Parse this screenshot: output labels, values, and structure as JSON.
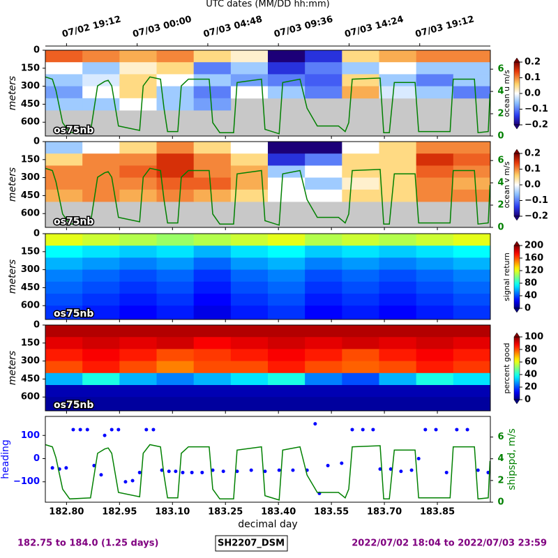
{
  "chart_data": [
    {
      "type": "heatmap",
      "label": "os75nb",
      "ylabel": "meters",
      "colorbar_label": "ocean u m/s",
      "colormap": "diverging",
      "x2label": "UTC dates (MM/DD hh:mm)",
      "x2ticks": [
        {
          "value": 182.8,
          "label": "07/02 19:12"
        },
        {
          "value": 183.0,
          "label": "07/03 00:00"
        },
        {
          "value": 183.2,
          "label": "07/03 04:48"
        },
        {
          "value": 183.4,
          "label": "07/03 09:36"
        },
        {
          "value": 183.6,
          "label": "07/03 14:24"
        },
        {
          "value": 183.8,
          "label": "07/03 19:12"
        }
      ],
      "xlim": [
        182.74,
        184.0
      ],
      "ylim": [
        0,
        715
      ],
      "invert_y": true,
      "yticks": [
        0,
        150,
        300,
        450,
        600
      ],
      "y2lim": [
        0,
        7.7
      ],
      "y2ticks": [
        0,
        2,
        4,
        6
      ],
      "y2color": "#008000",
      "clim": [
        -0.2,
        0.2
      ],
      "cticks": [
        0.2,
        0.1,
        {
          "value": 0,
          "label": "0.0"
        },
        {
          "value": -0.1,
          "label": "−0.1"
        },
        {
          "value": -0.2,
          "label": "−0.2"
        }
      ],
      "x_edges": [
        182.74,
        182.845,
        182.95,
        183.055,
        183.16,
        183.265,
        183.37,
        183.475,
        183.58,
        183.685,
        183.79,
        183.895,
        184.0
      ],
      "y_edges": [
        0,
        100,
        200,
        300,
        400,
        500,
        600,
        715
      ],
      "values": [
        [
          0.12,
          0.1,
          0.08,
          0.1,
          0.05,
          0.02,
          -0.2,
          -0.15,
          0.05,
          0.08,
          0.1,
          0.1
        ],
        [
          0.0,
          -0.05,
          0.02,
          0.05,
          -0.1,
          -0.05,
          -0.15,
          -0.1,
          -0.05,
          0.0,
          -0.05,
          -0.05
        ],
        [
          -0.05,
          -0.02,
          0.05,
          0.0,
          -0.05,
          -0.08,
          -0.1,
          -0.12,
          0.05,
          -0.05,
          -0.1,
          -0.05
        ],
        [
          -0.08,
          0.0,
          0.05,
          -0.05,
          -0.1,
          0.0,
          -0.05,
          -0.1,
          0.08,
          -0.02,
          -0.05,
          -0.1
        ],
        [
          -0.05,
          -0.05,
          0.0,
          -0.05,
          -0.08,
          null,
          null,
          null,
          null,
          null,
          null,
          null
        ],
        [
          null,
          null,
          null,
          null,
          null,
          null,
          null,
          null,
          null,
          null,
          null,
          null
        ],
        [
          null,
          null,
          null,
          null,
          null,
          null,
          null,
          null,
          null,
          null,
          null,
          null
        ]
      ]
    },
    {
      "type": "heatmap",
      "label": "os75nb",
      "ylabel": "meters",
      "colorbar_label": "ocean v m/s",
      "colormap": "diverging",
      "xlim": [
        182.74,
        184.0
      ],
      "ylim": [
        0,
        715
      ],
      "invert_y": true,
      "yticks": [
        0,
        150,
        300,
        450,
        600
      ],
      "y2lim": [
        0,
        7.7
      ],
      "y2ticks": [
        0,
        2,
        4,
        6
      ],
      "y2color": "#008000",
      "clim": [
        -0.2,
        0.2
      ],
      "cticks": [
        0.2,
        0.1,
        {
          "value": 0,
          "label": "0.0"
        },
        {
          "value": -0.1,
          "label": "−0.1"
        },
        {
          "value": -0.2,
          "label": "−0.2"
        }
      ],
      "x_edges": [
        182.74,
        182.845,
        182.95,
        183.055,
        183.16,
        183.265,
        183.37,
        183.475,
        183.58,
        183.685,
        183.79,
        183.895,
        184.0
      ],
      "y_edges": [
        0,
        100,
        200,
        300,
        400,
        500,
        600,
        715
      ],
      "values": [
        [
          -0.05,
          0.0,
          0.05,
          0.1,
          0.05,
          0.0,
          -0.2,
          -0.2,
          0.0,
          0.05,
          0.1,
          0.1
        ],
        [
          0.05,
          0.1,
          0.1,
          0.15,
          0.1,
          0.05,
          -0.15,
          -0.1,
          0.05,
          0.05,
          0.15,
          0.12
        ],
        [
          0.1,
          0.1,
          0.12,
          0.15,
          0.1,
          0.08,
          -0.05,
          0.0,
          0.05,
          0.05,
          0.12,
          0.1
        ],
        [
          0.1,
          0.1,
          0.1,
          0.12,
          0.12,
          0.08,
          0.0,
          -0.05,
          0.02,
          0.05,
          0.1,
          0.08
        ],
        [
          0.08,
          0.1,
          0.08,
          0.1,
          0.08,
          0.05,
          0.0,
          0.0,
          0.05,
          0.05,
          0.1,
          0.1
        ],
        [
          null,
          null,
          null,
          null,
          null,
          null,
          null,
          null,
          null,
          null,
          null,
          null
        ],
        [
          null,
          null,
          null,
          null,
          null,
          null,
          null,
          null,
          null,
          null,
          null,
          null
        ]
      ]
    },
    {
      "type": "heatmap",
      "label": "os75nb",
      "ylabel": "meters",
      "colorbar_label": "signal return",
      "colormap": "jet",
      "xlim": [
        182.74,
        184.0
      ],
      "ylim": [
        0,
        715
      ],
      "invert_y": true,
      "yticks": [
        0,
        150,
        300,
        450,
        600
      ],
      "clim": [
        0,
        200
      ],
      "cticks": [
        200,
        160,
        120,
        80,
        40,
        0
      ],
      "x_edges": [
        182.74,
        182.845,
        182.95,
        183.055,
        183.16,
        183.265,
        183.37,
        183.475,
        183.58,
        183.685,
        183.79,
        183.895,
        184.0
      ],
      "y_edges": [
        0,
        100,
        200,
        300,
        400,
        500,
        600,
        715
      ],
      "values": [
        [
          120,
          115,
          110,
          105,
          110,
          115,
          120,
          110,
          115,
          110,
          115,
          120
        ],
        [
          75,
          70,
          65,
          70,
          60,
          70,
          75,
          65,
          70,
          65,
          70,
          75
        ],
        [
          60,
          55,
          50,
          55,
          45,
          55,
          60,
          50,
          55,
          50,
          55,
          60
        ],
        [
          50,
          45,
          40,
          45,
          35,
          45,
          50,
          40,
          45,
          40,
          45,
          50
        ],
        [
          45,
          40,
          35,
          40,
          30,
          40,
          45,
          35,
          40,
          35,
          40,
          45
        ],
        [
          40,
          35,
          30,
          35,
          25,
          35,
          40,
          30,
          35,
          30,
          35,
          40
        ],
        [
          35,
          30,
          25,
          30,
          20,
          30,
          35,
          25,
          30,
          25,
          30,
          35
        ]
      ]
    },
    {
      "type": "heatmap",
      "label": "os75nb",
      "ylabel": "meters",
      "colorbar_label": "percent good",
      "colormap": "jet",
      "xlim": [
        182.74,
        184.0
      ],
      "ylim": [
        0,
        715
      ],
      "invert_y": true,
      "yticks": [
        0,
        150,
        300,
        450,
        600
      ],
      "clim": [
        0,
        100
      ],
      "cticks": [
        100,
        80,
        60,
        40,
        20,
        0
      ],
      "x_edges": [
        182.74,
        182.845,
        182.95,
        183.055,
        183.16,
        183.265,
        183.37,
        183.475,
        183.58,
        183.685,
        183.79,
        183.895,
        184.0
      ],
      "y_edges": [
        0,
        100,
        200,
        300,
        400,
        500,
        600,
        715
      ],
      "values": [
        [
          95,
          95,
          95,
          95,
          95,
          95,
          95,
          95,
          95,
          95,
          95,
          95
        ],
        [
          90,
          92,
          90,
          92,
          88,
          90,
          92,
          90,
          92,
          90,
          92,
          90
        ],
        [
          85,
          88,
          85,
          80,
          82,
          85,
          88,
          85,
          80,
          85,
          88,
          85
        ],
        [
          80,
          85,
          80,
          75,
          80,
          80,
          85,
          80,
          78,
          80,
          85,
          82
        ],
        [
          30,
          40,
          30,
          25,
          30,
          35,
          40,
          25,
          20,
          30,
          40,
          35
        ],
        [
          5,
          5,
          5,
          5,
          5,
          5,
          5,
          5,
          5,
          5,
          5,
          5
        ],
        [
          3,
          3,
          3,
          3,
          3,
          3,
          3,
          3,
          3,
          3,
          3,
          3
        ]
      ]
    },
    {
      "type": "scatter",
      "xlabel": "decimal day",
      "xlim": [
        182.74,
        184.0
      ],
      "xticks": [
        {
          "value": 182.8,
          "label": "182.80"
        },
        182.95,
        {
          "value": 183.1,
          "label": "183.10"
        },
        183.25,
        {
          "value": 183.4,
          "label": "183.40"
        },
        183.55,
        {
          "value": 183.7,
          "label": "183.70"
        },
        183.85
      ],
      "ylim": [
        -188,
        182
      ],
      "yticks": [
        100,
        0,
        {
          "value": -100,
          "label": "−100"
        }
      ],
      "y2lim": [
        0,
        7.9
      ],
      "y2ticks": [
        0,
        2,
        4,
        6
      ],
      "series": [
        {
          "name": "heading",
          "color": "#0000ff",
          "x": [
            182.76,
            182.78,
            182.799,
            182.819,
            182.839,
            182.859,
            182.878,
            182.898,
            182.908,
            182.928,
            182.947,
            182.967,
            182.987,
            183.007,
            183.026,
            183.046,
            183.07,
            183.09,
            183.109,
            183.129,
            183.155,
            183.184,
            183.214,
            183.244,
            183.283,
            183.323,
            183.362,
            183.402,
            183.441,
            183.481,
            183.504,
            183.516,
            183.54,
            183.579,
            183.609,
            183.639,
            183.668,
            183.688,
            183.718,
            183.747,
            183.777,
            183.797,
            183.816,
            183.846,
            183.876,
            183.905,
            183.935,
            183.965,
            183.994
          ],
          "values": [
            -40,
            -45,
            -40,
            125,
            125,
            125,
            -30,
            -70,
            100,
            125,
            125,
            -100,
            -95,
            -60,
            125,
            125,
            -50,
            -55,
            -55,
            -60,
            -60,
            -60,
            -50,
            -55,
            -55,
            -50,
            -55,
            -50,
            -50,
            -50,
            150,
            -150,
            -30,
            -20,
            125,
            125,
            125,
            -45,
            -45,
            -55,
            -50,
            0,
            125,
            125,
            -60,
            125,
            125,
            -50,
            -60
          ]
        },
        {
          "name": "shipspd, m/s",
          "color": "#008000",
          "axis": "y2",
          "x": [
            182.74,
            182.76,
            182.77,
            182.789,
            182.809,
            182.868,
            182.888,
            182.908,
            182.918,
            182.928,
            182.947,
            183.007,
            183.017,
            183.036,
            183.066,
            183.076,
            183.086,
            183.115,
            183.125,
            183.135,
            183.145,
            183.204,
            183.214,
            183.234,
            183.273,
            183.283,
            183.352,
            183.362,
            183.402,
            183.412,
            183.461,
            183.481,
            183.51,
            183.57,
            183.589,
            183.599,
            183.609,
            183.688,
            183.698,
            183.714,
            183.728,
            183.787,
            183.797,
            183.886,
            183.895,
            183.955,
            183.965,
            183.994,
            183.999
          ],
          "values": [
            5.3,
            5.1,
            4.1,
            1.2,
            0.3,
            0.4,
            4.5,
            4.9,
            5.0,
            4.5,
            0.9,
            0.5,
            4.5,
            5.3,
            5.1,
            2.5,
            0.4,
            0.4,
            4.5,
            4.8,
            5.1,
            5.1,
            1.2,
            0.3,
            0.3,
            4.8,
            5.1,
            0.6,
            0.2,
            4.8,
            5.1,
            2.5,
            0.9,
            0.9,
            0.4,
            1.2,
            5.1,
            5.2,
            0.3,
            0.3,
            4.8,
            4.8,
            0.4,
            0.4,
            5.1,
            5.1,
            0.3,
            0.4,
            3.8
          ]
        }
      ]
    }
  ],
  "footer": {
    "range": "182.75 to 184.0 (1.25 days)",
    "cruise": "SH2207_DSM",
    "dates": "2022/07/02 18:04 to 2022/07/03 23:59",
    "color": "#800080"
  }
}
